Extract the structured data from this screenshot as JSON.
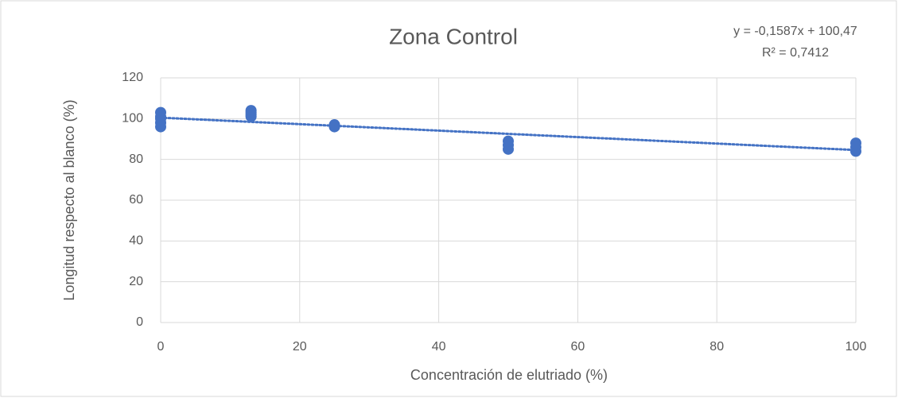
{
  "chart_data": {
    "type": "scatter",
    "title": "Zona Control",
    "x_label": "Concentración de elutriado (%)",
    "y_label": "Longitud respecto al blanco (%)",
    "annotations": [
      "y = -0,1587x + 100,47",
      "R² = 0,7412"
    ],
    "series": [
      {
        "color": "#4472c4",
        "x": [
          0,
          0,
          0,
          0,
          0,
          13,
          13,
          13,
          13,
          25,
          25,
          50,
          50,
          50,
          100,
          100,
          100
        ],
        "values": [
          96,
          98,
          100,
          101,
          103,
          101,
          102,
          103,
          104,
          96,
          97,
          85,
          87,
          89,
          84,
          86,
          88
        ]
      }
    ],
    "trendline": {
      "slope": -0.1587,
      "intercept": 100.47,
      "color": "#4472c4"
    },
    "xlim": [
      0,
      100
    ],
    "xticks": [
      0,
      20,
      40,
      60,
      80,
      100
    ],
    "ylim": [
      0,
      120
    ],
    "yticks": [
      0,
      20,
      40,
      60,
      80,
      100,
      120
    ],
    "grid": true
  }
}
